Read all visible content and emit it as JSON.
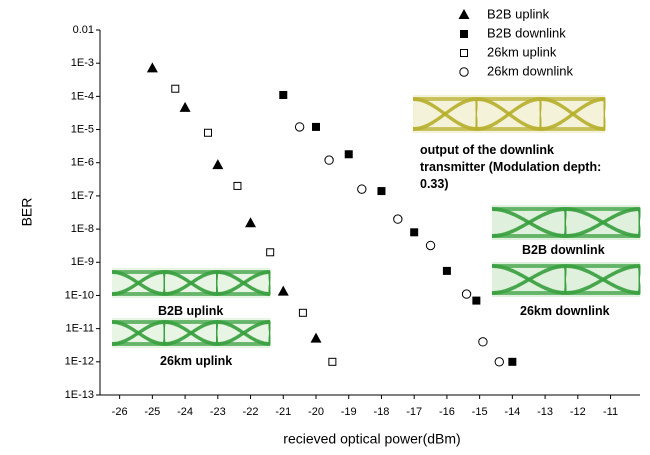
{
  "chart_data": {
    "type": "scatter",
    "xlabel": "recieved optical power(dBm)",
    "ylabel": "BER",
    "xlim": [
      -26.6,
      -10.1
    ],
    "xticks": [
      -26,
      -25,
      -24,
      -23,
      -22,
      -21,
      -20,
      -19,
      -18,
      -17,
      -16,
      -15,
      -14,
      -13,
      -12,
      -11
    ],
    "ylim": [
      1e-13,
      0.01
    ],
    "log_y": true,
    "yticks": [
      0.01,
      {
        "value": 0.001,
        "label": "1E-3"
      },
      {
        "value": 0.0001,
        "label": "1E-4"
      },
      {
        "value": 1e-05,
        "label": "1E-5"
      },
      {
        "value": 1e-06,
        "label": "1E-6"
      },
      {
        "value": 1e-07,
        "label": "1E-7"
      },
      {
        "value": 1e-08,
        "label": "1E-8"
      },
      {
        "value": 1e-09,
        "label": "1E-9"
      },
      {
        "value": 1e-10,
        "label": "1E-10"
      },
      {
        "value": 1e-11,
        "label": "1E-11"
      },
      {
        "value": 1e-12,
        "label": "1E-12"
      },
      {
        "value": 1e-13,
        "label": "1E-13"
      }
    ],
    "legend": "top-right",
    "series": [
      {
        "name": "B2B uplink",
        "color": "#000000",
        "marker": "triangle",
        "x": [
          -25,
          -24,
          -23,
          -22,
          -21,
          -20
        ],
        "values": [
          0.0007,
          4.5e-05,
          8.5e-07,
          1.5e-08,
          1.3e-10,
          5e-12
        ]
      },
      {
        "name": "B2B downlink",
        "color": "#000000",
        "marker": "square",
        "x": [
          -21,
          -20,
          -19,
          -18,
          -17,
          -16,
          -15.1,
          -14
        ],
        "values": [
          0.00011,
          1.2e-05,
          1.8e-06,
          1.4e-07,
          8e-09,
          5.5e-10,
          7e-11,
          1e-12
        ]
      },
      {
        "name": "26km uplink",
        "color": "#000000",
        "marker": "open-square",
        "x": [
          -24.3,
          -23.3,
          -22.4,
          -21.4,
          -20.4,
          -19.5
        ],
        "values": [
          0.00017,
          8e-06,
          2e-07,
          2e-09,
          3e-11,
          1e-12
        ]
      },
      {
        "name": "26km downlink",
        "color": "#000000",
        "marker": "open-circle",
        "x": [
          -20.5,
          -19.6,
          -18.6,
          -17.5,
          -16.5,
          -15.4,
          -14.9,
          -14.4
        ],
        "values": [
          1.2e-05,
          1.2e-06,
          1.6e-07,
          2e-08,
          3.2e-09,
          1.1e-10,
          4e-12,
          1e-12
        ]
      }
    ],
    "annotations": [
      "output of the downlink transmitter (Modulation depth: 0.33)",
      "B2B downlink",
      "26km downlink",
      "B2B uplink",
      "26km uplink"
    ]
  }
}
